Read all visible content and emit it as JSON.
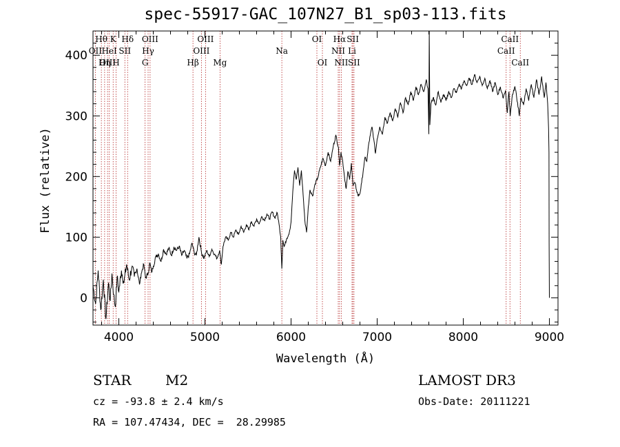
{
  "title": "spec-55917-GAC_107N27_B1_sp03-113.fits",
  "info": {
    "class": "STAR",
    "subclass": "M2",
    "survey": "LAMOST DR3",
    "cz": "cz = -93.8 ± 2.4 km/s",
    "obs_date": "Obs-Date: 20111221",
    "coords": "RA = 107.47434, DEC =  28.29985"
  },
  "colors": {
    "spectrum": "#000000",
    "lines": "#b22222",
    "axes": "#000000"
  },
  "chart_data": {
    "type": "line",
    "title": "spec-55917-GAC_107N27_B1_sp03-113.fits",
    "xlabel": "Wavelength (Å)",
    "ylabel": "Flux (relative)",
    "xlim": [
      3700,
      9100
    ],
    "ylim": [
      -45,
      440
    ],
    "xticks": [
      4000,
      5000,
      6000,
      7000,
      8000,
      9000
    ],
    "yticks": [
      0,
      100,
      200,
      300,
      400
    ],
    "series": [
      {
        "name": "spectrum",
        "points": [
          [
            3700,
            20
          ],
          [
            3730,
            -10
          ],
          [
            3760,
            45
          ],
          [
            3790,
            -20
          ],
          [
            3820,
            30
          ],
          [
            3850,
            -35
          ],
          [
            3880,
            25
          ],
          [
            3900,
            -5
          ],
          [
            3920,
            40
          ],
          [
            3940,
            5
          ],
          [
            3960,
            -15
          ],
          [
            3980,
            35
          ],
          [
            4000,
            10
          ],
          [
            4030,
            45
          ],
          [
            4060,
            25
          ],
          [
            4090,
            55
          ],
          [
            4120,
            30
          ],
          [
            4150,
            50
          ],
          [
            4180,
            35
          ],
          [
            4210,
            48
          ],
          [
            4240,
            22
          ],
          [
            4260,
            40
          ],
          [
            4290,
            55
          ],
          [
            4310,
            33
          ],
          [
            4340,
            40
          ],
          [
            4360,
            58
          ],
          [
            4380,
            42
          ],
          [
            4400,
            52
          ],
          [
            4430,
            68
          ],
          [
            4460,
            72
          ],
          [
            4490,
            60
          ],
          [
            4520,
            80
          ],
          [
            4550,
            72
          ],
          [
            4580,
            82
          ],
          [
            4610,
            70
          ],
          [
            4640,
            84
          ],
          [
            4670,
            78
          ],
          [
            4700,
            85
          ],
          [
            4730,
            70
          ],
          [
            4760,
            78
          ],
          [
            4790,
            65
          ],
          [
            4820,
            72
          ],
          [
            4850,
            90
          ],
          [
            4875,
            75
          ],
          [
            4900,
            70
          ],
          [
            4930,
            100
          ],
          [
            4960,
            75
          ],
          [
            4990,
            65
          ],
          [
            5020,
            78
          ],
          [
            5050,
            68
          ],
          [
            5080,
            80
          ],
          [
            5110,
            72
          ],
          [
            5140,
            65
          ],
          [
            5170,
            78
          ],
          [
            5190,
            55
          ],
          [
            5210,
            85
          ],
          [
            5240,
            100
          ],
          [
            5270,
            95
          ],
          [
            5300,
            108
          ],
          [
            5330,
            100
          ],
          [
            5360,
            112
          ],
          [
            5390,
            104
          ],
          [
            5420,
            118
          ],
          [
            5450,
            108
          ],
          [
            5480,
            120
          ],
          [
            5510,
            112
          ],
          [
            5540,
            126
          ],
          [
            5570,
            118
          ],
          [
            5600,
            130
          ],
          [
            5630,
            122
          ],
          [
            5660,
            134
          ],
          [
            5690,
            128
          ],
          [
            5720,
            138
          ],
          [
            5750,
            130
          ],
          [
            5780,
            142
          ],
          [
            5810,
            132
          ],
          [
            5840,
            140
          ],
          [
            5860,
            122
          ],
          [
            5880,
            100
          ],
          [
            5893,
            48
          ],
          [
            5905,
            95
          ],
          [
            5920,
            84
          ],
          [
            5950,
            98
          ],
          [
            5980,
            108
          ],
          [
            6000,
            125
          ],
          [
            6020,
            175
          ],
          [
            6040,
            210
          ],
          [
            6060,
            195
          ],
          [
            6080,
            215
          ],
          [
            6100,
            185
          ],
          [
            6120,
            210
          ],
          [
            6140,
            170
          ],
          [
            6160,
            128
          ],
          [
            6180,
            108
          ],
          [
            6200,
            150
          ],
          [
            6220,
            178
          ],
          [
            6250,
            168
          ],
          [
            6280,
            188
          ],
          [
            6310,
            198
          ],
          [
            6340,
            215
          ],
          [
            6370,
            230
          ],
          [
            6400,
            218
          ],
          [
            6430,
            240
          ],
          [
            6460,
            225
          ],
          [
            6490,
            250
          ],
          [
            6520,
            268
          ],
          [
            6550,
            248
          ],
          [
            6563,
            218
          ],
          [
            6580,
            240
          ],
          [
            6600,
            225
          ],
          [
            6620,
            200
          ],
          [
            6640,
            180
          ],
          [
            6660,
            208
          ],
          [
            6680,
            195
          ],
          [
            6700,
            222
          ],
          [
            6720,
            185
          ],
          [
            6740,
            190
          ],
          [
            6760,
            178
          ],
          [
            6780,
            168
          ],
          [
            6800,
            172
          ],
          [
            6820,
            190
          ],
          [
            6840,
            212
          ],
          [
            6860,
            232
          ],
          [
            6880,
            225
          ],
          [
            6900,
            252
          ],
          [
            6920,
            268
          ],
          [
            6940,
            282
          ],
          [
            6960,
            262
          ],
          [
            6980,
            238
          ],
          [
            7000,
            262
          ],
          [
            7030,
            282
          ],
          [
            7060,
            270
          ],
          [
            7090,
            298
          ],
          [
            7120,
            288
          ],
          [
            7150,
            305
          ],
          [
            7180,
            292
          ],
          [
            7210,
            312
          ],
          [
            7240,
            298
          ],
          [
            7270,
            322
          ],
          [
            7300,
            305
          ],
          [
            7330,
            330
          ],
          [
            7360,
            318
          ],
          [
            7390,
            340
          ],
          [
            7420,
            325
          ],
          [
            7450,
            348
          ],
          [
            7480,
            335
          ],
          [
            7510,
            352
          ],
          [
            7540,
            340
          ],
          [
            7570,
            360
          ],
          [
            7590,
            345
          ],
          [
            7600,
            270
          ],
          [
            7605,
            440
          ],
          [
            7612,
            285
          ],
          [
            7625,
            320
          ],
          [
            7650,
            330
          ],
          [
            7680,
            318
          ],
          [
            7710,
            340
          ],
          [
            7740,
            322
          ],
          [
            7770,
            335
          ],
          [
            7800,
            325
          ],
          [
            7830,
            340
          ],
          [
            7860,
            330
          ],
          [
            7890,
            345
          ],
          [
            7920,
            338
          ],
          [
            7950,
            352
          ],
          [
            7980,
            345
          ],
          [
            8010,
            358
          ],
          [
            8040,
            350
          ],
          [
            8070,
            362
          ],
          [
            8100,
            352
          ],
          [
            8130,
            368
          ],
          [
            8160,
            355
          ],
          [
            8190,
            365
          ],
          [
            8220,
            350
          ],
          [
            8250,
            362
          ],
          [
            8280,
            345
          ],
          [
            8310,
            358
          ],
          [
            8340,
            340
          ],
          [
            8370,
            355
          ],
          [
            8400,
            335
          ],
          [
            8430,
            348
          ],
          [
            8460,
            330
          ],
          [
            8490,
            342
          ],
          [
            8510,
            305
          ],
          [
            8530,
            340
          ],
          [
            8545,
            300
          ],
          [
            8570,
            335
          ],
          [
            8600,
            348
          ],
          [
            8630,
            322
          ],
          [
            8650,
            300
          ],
          [
            8670,
            330
          ],
          [
            8700,
            318
          ],
          [
            8730,
            345
          ],
          [
            8760,
            325
          ],
          [
            8790,
            352
          ],
          [
            8820,
            330
          ],
          [
            8850,
            360
          ],
          [
            8880,
            335
          ],
          [
            8910,
            365
          ],
          [
            8940,
            330
          ],
          [
            8960,
            355
          ],
          [
            8980,
            320
          ],
          [
            8990,
            280
          ],
          [
            8995,
            240
          ],
          [
            8997,
            90
          ],
          [
            9000,
            0
          ]
        ]
      }
    ],
    "line_markers": [
      {
        "label": "Hθ",
        "x": 3797,
        "row": 1
      },
      {
        "label": "K",
        "x": 3934,
        "row": 1
      },
      {
        "label": "Hδ",
        "x": 4102,
        "row": 1
      },
      {
        "label": "OIII",
        "x": 4363,
        "row": 1
      },
      {
        "label": "OIII",
        "x": 5007,
        "row": 1
      },
      {
        "label": "OI",
        "x": 6300,
        "row": 1
      },
      {
        "label": "Hα",
        "x": 6563,
        "row": 1
      },
      {
        "label": "SII",
        "x": 6717,
        "row": 1
      },
      {
        "label": "CaII",
        "x": 8542,
        "row": 1
      },
      {
        "label": "OII",
        "x": 3727,
        "row": 2
      },
      {
        "label": "HeI",
        "x": 3889,
        "row": 2
      },
      {
        "label": "SII",
        "x": 4070,
        "row": 2
      },
      {
        "label": "Hγ",
        "x": 4340,
        "row": 2
      },
      {
        "label": "OIII",
        "x": 4959,
        "row": 2
      },
      {
        "label": "Na",
        "x": 5893,
        "row": 2
      },
      {
        "label": "NII",
        "x": 6548,
        "row": 2
      },
      {
        "label": "Li",
        "x": 6708,
        "row": 2
      },
      {
        "label": "CaII",
        "x": 8498,
        "row": 2
      },
      {
        "label": "OIII",
        "x": 3869,
        "row": 3
      },
      {
        "label": "Hη",
        "x": 3835,
        "row": 3
      },
      {
        "label": "H",
        "x": 3968,
        "row": 3
      },
      {
        "label": "G",
        "x": 4305,
        "row": 3
      },
      {
        "label": "Hβ",
        "x": 4861,
        "row": 3
      },
      {
        "label": "Mg",
        "x": 5175,
        "row": 3
      },
      {
        "label": "OI",
        "x": 6364,
        "row": 3
      },
      {
        "label": "NII",
        "x": 6583,
        "row": 3
      },
      {
        "label": "SII",
        "x": 6731,
        "row": 3
      },
      {
        "label": "CaII",
        "x": 8662,
        "row": 3
      }
    ]
  }
}
